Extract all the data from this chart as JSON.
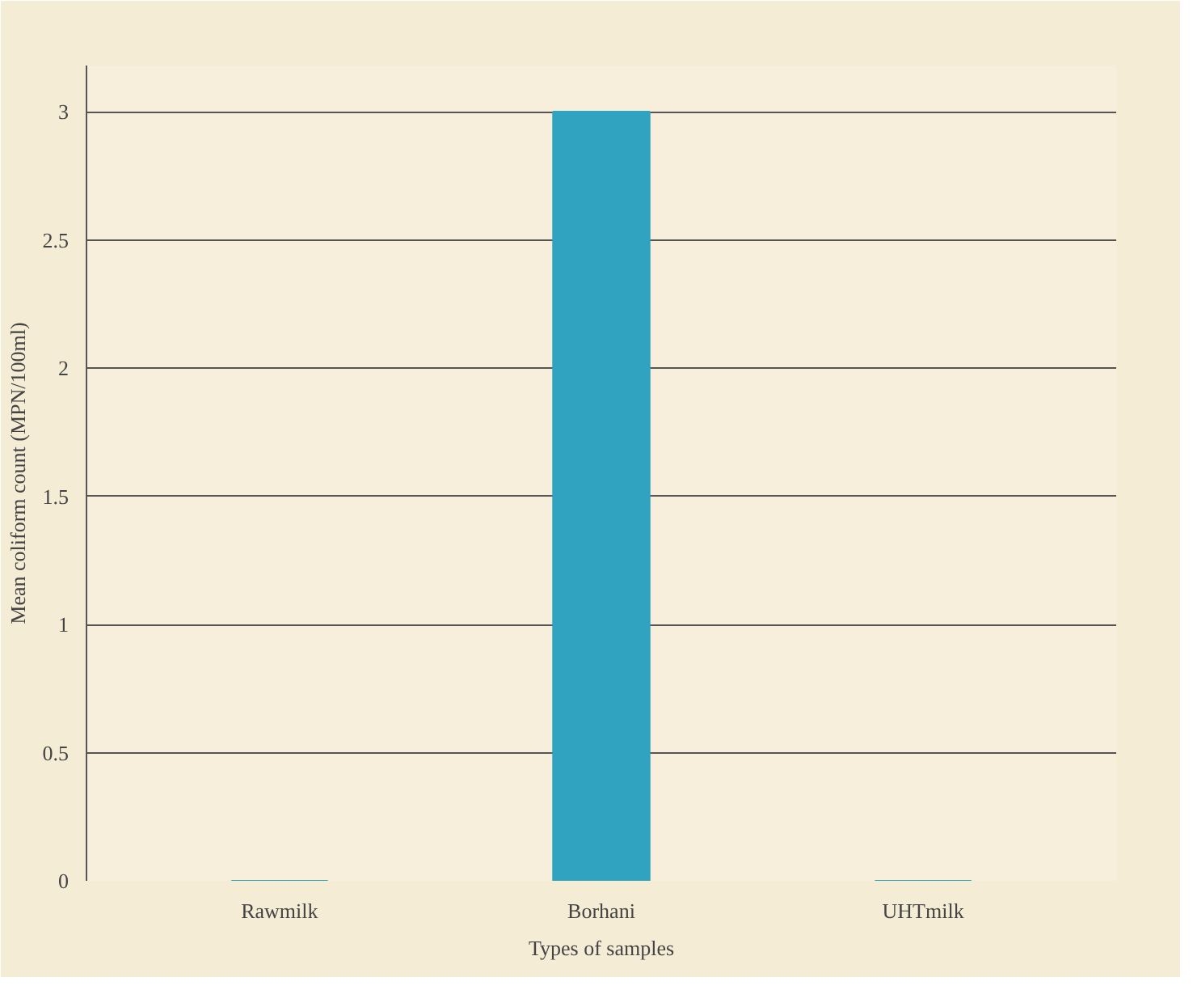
{
  "chart_data": {
    "type": "bar",
    "xlabel": "Types of samples",
    "ylabel": "Mean coliform count (MPN/100ml)",
    "categories": [
      "Rawmilk",
      "Borhani",
      "UHTmilk"
    ],
    "values": [
      0,
      3,
      0
    ],
    "color": "#2fa3c0",
    "ylim": [
      0,
      3
    ],
    "yticks": [
      0,
      0.5,
      1,
      1.5,
      2,
      2.5,
      3
    ],
    "grid": "y"
  }
}
